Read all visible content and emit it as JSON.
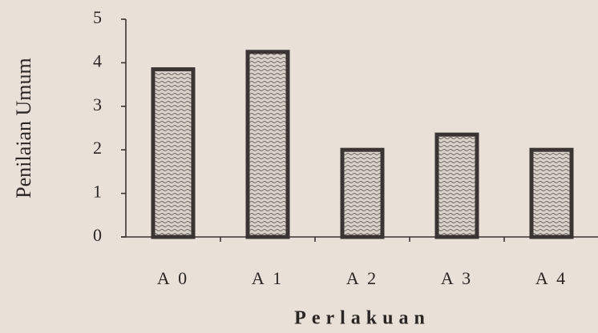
{
  "chart_data": {
    "type": "bar",
    "x_label": "Perlakuan",
    "y_label": "Penilaian Umum",
    "categories": [
      "A 0",
      "A 1",
      "A 2",
      "A 3",
      "A 4"
    ],
    "values": [
      3.85,
      4.25,
      2.0,
      2.35,
      2.0
    ],
    "color": "#3a3532",
    "ylim": [
      0,
      5
    ],
    "yticks": [
      0,
      1,
      2,
      3,
      4,
      5
    ],
    "grid": false
  }
}
